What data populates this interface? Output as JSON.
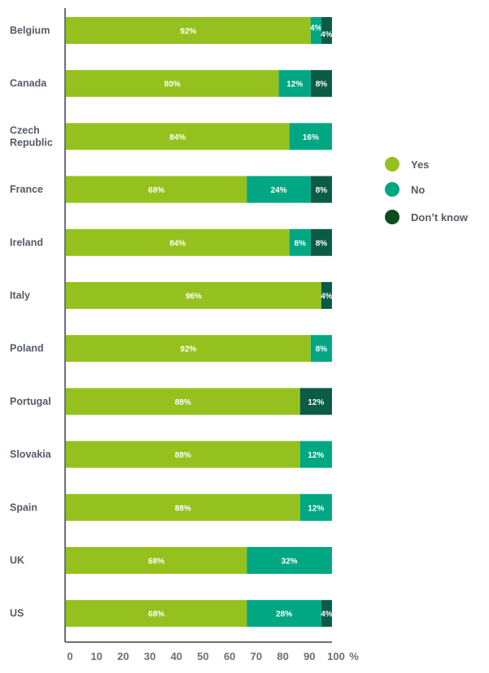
{
  "chart_data": {
    "type": "bar",
    "orientation": "horizontal",
    "stacked": true,
    "categories": [
      "Belgium",
      "Canada",
      "Czech Republic",
      "France",
      "Ireland",
      "Italy",
      "Poland",
      "Portugal",
      "Slovakia",
      "Spain",
      "UK",
      "US"
    ],
    "series": [
      {
        "name": "Yes",
        "color": "#95c11f",
        "values": [
          92,
          80,
          84,
          68,
          84,
          96,
          92,
          88,
          88,
          88,
          68,
          68
        ]
      },
      {
        "name": "No",
        "color": "#00a783",
        "values": [
          4,
          12,
          16,
          24,
          8,
          0,
          8,
          0,
          12,
          12,
          32,
          28
        ]
      },
      {
        "name": "Don’t know",
        "color": "#0a5c46",
        "values": [
          4,
          8,
          0,
          8,
          8,
          4,
          0,
          12,
          0,
          0,
          0,
          4
        ]
      }
    ],
    "xlim": [
      0,
      100
    ],
    "xticks": [
      0,
      10,
      20,
      30,
      40,
      50,
      60,
      70,
      80,
      90,
      100
    ],
    "xunit": "%",
    "legend_position": "right",
    "legend_marker_colors": [
      "#95c11f",
      "#00a783",
      "#0b4d1a"
    ],
    "grid": false,
    "label_suffix": "%"
  }
}
